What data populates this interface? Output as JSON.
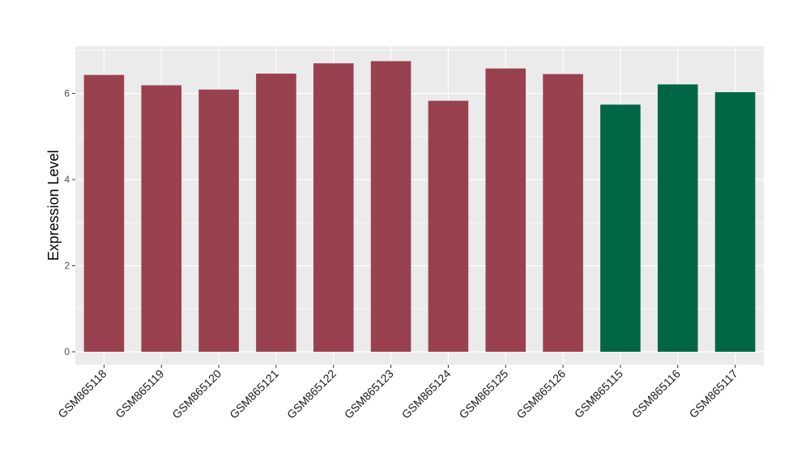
{
  "chart_data": {
    "type": "bar",
    "title": "",
    "xlabel": "",
    "ylabel": "Expression Level",
    "ylim": [
      -0.3,
      7.1
    ],
    "yticks": [
      0,
      2,
      4,
      6
    ],
    "grid": true,
    "legend": "none",
    "categories": [
      "GSM865118",
      "GSM865119",
      "GSM865120",
      "GSM865121",
      "GSM865122",
      "GSM865123",
      "GSM865124",
      "GSM865125",
      "GSM865126",
      "GSM865115",
      "GSM865116",
      "GSM865117"
    ],
    "values": [
      6.43,
      6.19,
      6.09,
      6.46,
      6.7,
      6.75,
      5.83,
      6.58,
      6.45,
      5.74,
      6.21,
      6.03
    ],
    "bar_colors": [
      "#99414f",
      "#99414f",
      "#99414f",
      "#99414f",
      "#99414f",
      "#99414f",
      "#99414f",
      "#99414f",
      "#99414f",
      "#006645",
      "#006645",
      "#006645"
    ],
    "panel_background": "#ebebeb",
    "grid_color": "#ffffff"
  }
}
